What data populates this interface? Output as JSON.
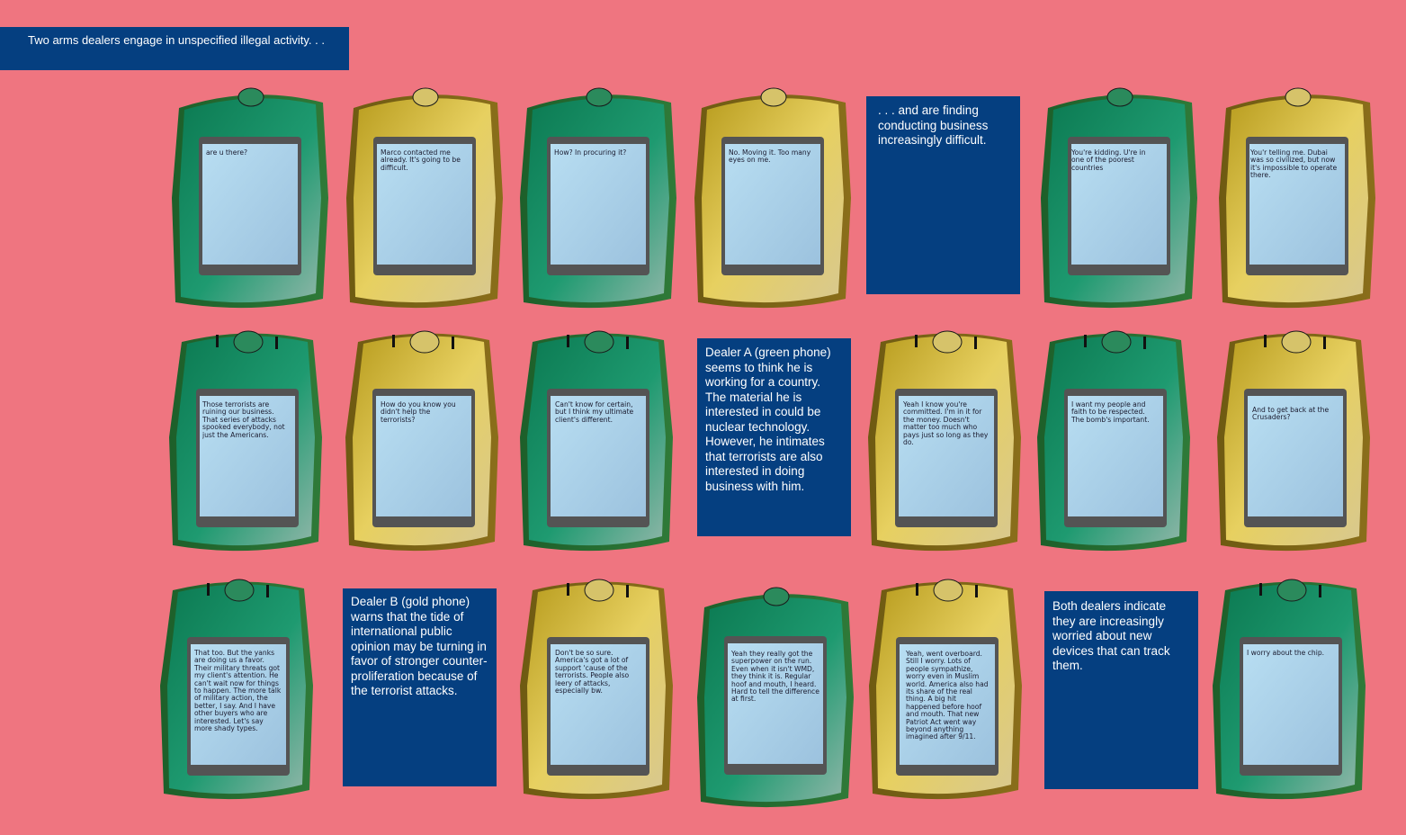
{
  "captions": [
    "Two arms dealers engage in unspecified illegal activity. . .",
    ". . . and are finding conducting business increasingly difficult.",
    "Dealer A (green phone) seems to think he is working for a country. The material he is interested in could be nuclear technology. However, he intimates that terrorists are also interested in doing business with him.",
    "Dealer B (gold phone) warns that the tide of international public opinion may be turning in favor of stronger counter-proliferation because of the terrorist attacks.",
    "Both dealers indicate they are increasingly worried about new devices that can track them."
  ],
  "colors": {
    "background": "#ef7580",
    "caption": "#053f80",
    "green_phone": "#1a8a5c",
    "gold_phone": "#c9b53a",
    "screen": "#a8d4ec"
  },
  "phones": [
    {
      "dealer": "A",
      "color": "green",
      "text": "are u there?"
    },
    {
      "dealer": "B",
      "color": "gold",
      "text": "Marco contacted me already.  It's going to be difficult."
    },
    {
      "dealer": "A",
      "color": "green",
      "text": "How? In procuring it?"
    },
    {
      "dealer": "B",
      "color": "gold",
      "text": "No.  Moving it.  Too many eyes on me."
    },
    {
      "dealer": "A",
      "color": "green",
      "text": "You're kidding. U're in one of the poorest countries"
    },
    {
      "dealer": "B",
      "color": "gold",
      "text": "You'r telling me. Dubai was so civilized, but now it's impossible to operate there."
    },
    {
      "dealer": "A",
      "color": "green",
      "text": "Those terrorists are ruining our business. That series of attacks spooked everybody, not just the Americans."
    },
    {
      "dealer": "B",
      "color": "gold",
      "text": "How do you know you didn't help the terrorists?"
    },
    {
      "dealer": "A",
      "color": "green",
      "text": "Can't know for certain, but I think my ultimate client's different."
    },
    {
      "dealer": "B",
      "color": "gold",
      "text": "Yeah I know you're committed. I'm in it for the money. Doesn't matter too much who pays just so long as they do."
    },
    {
      "dealer": "A",
      "color": "green",
      "text": "I want my people and faith to be respected. The bomb's important."
    },
    {
      "dealer": "B",
      "color": "gold",
      "text": "And to get back at the Crusaders?"
    },
    {
      "dealer": "A",
      "color": "green",
      "text": "That too. But the yanks are doing us a favor. Their military threats got my client's attention. He can't wait now for things to happen. The more talk of military action, the better, I say. And I have other buyers who are interested. Let's say more shady types."
    },
    {
      "dealer": "B",
      "color": "gold",
      "text": "Don't be so sure. America's got a lot of support 'cause of the terrorists. People also leery of attacks, especially bw."
    },
    {
      "dealer": "A",
      "color": "green",
      "text": "Yeah they really got the superpower on the run. Even when it isn't WMD, they think it is. Regular hoof and mouth, I heard. Hard to tell the difference at first."
    },
    {
      "dealer": "B",
      "color": "gold",
      "text": "Yeah, went overboard. Still I worry. Lots of people sympathize, worry even in Muslim world. America also had its share of the real thing. A big hit happened before hoof and mouth. That new Patriot Act went way beyond anything imagined after 9/11."
    },
    {
      "dealer": "A",
      "color": "green",
      "text": "I worry about the chip."
    }
  ]
}
